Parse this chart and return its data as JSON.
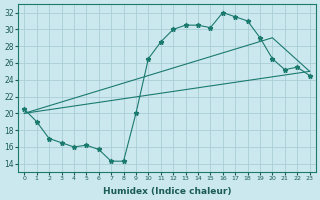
{
  "xlabel": "Humidex (Indice chaleur)",
  "bg_color": "#cce8ef",
  "grid_color": "#aacdd6",
  "line_color": "#1a7a6e",
  "xlim": [
    -0.5,
    23.5
  ],
  "ylim": [
    13,
    33
  ],
  "yticks": [
    14,
    16,
    18,
    20,
    22,
    24,
    26,
    28,
    30,
    32
  ],
  "xticks": [
    0,
    1,
    2,
    3,
    4,
    5,
    6,
    7,
    8,
    9,
    10,
    11,
    12,
    13,
    14,
    15,
    16,
    17,
    18,
    19,
    20,
    21,
    22,
    23
  ],
  "line1_x": [
    0,
    1,
    2,
    3,
    4,
    5,
    6,
    7,
    8,
    9,
    10,
    11,
    12,
    13,
    14,
    15,
    16,
    17,
    18,
    19,
    20,
    21,
    22,
    23
  ],
  "line1_y": [
    20.5,
    19.0,
    17.0,
    16.5,
    16.0,
    16.2,
    15.7,
    14.3,
    14.3,
    20.0,
    26.5,
    28.5,
    30.0,
    30.5,
    30.5,
    30.2,
    32.0,
    31.5,
    31.0,
    29.0,
    26.5,
    25.2,
    25.5,
    24.5
  ],
  "line2_x": [
    0,
    23
  ],
  "line2_y": [
    20.0,
    25.0
  ],
  "line3_x": [
    0,
    20,
    23
  ],
  "line3_y": [
    20.0,
    29.0,
    25.0
  ]
}
